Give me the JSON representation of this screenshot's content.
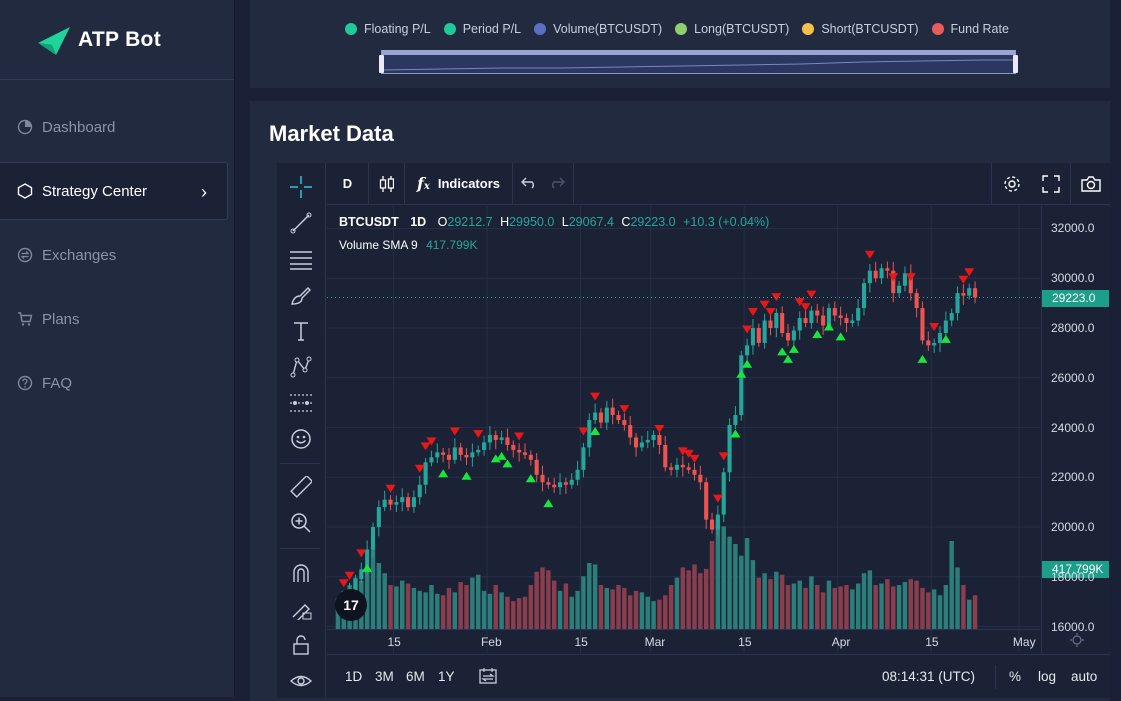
{
  "app": {
    "name": "ATP Bot"
  },
  "sidebar": {
    "items": [
      {
        "label": "Dashboard",
        "icon": "dashboard-icon",
        "active": false
      },
      {
        "label": "Strategy Center",
        "icon": "strategy-icon",
        "active": true
      },
      {
        "label": "Exchanges",
        "icon": "exchange-icon",
        "active": false
      },
      {
        "label": "Plans",
        "icon": "cart-icon",
        "active": false
      },
      {
        "label": "FAQ",
        "icon": "question-icon",
        "active": false
      }
    ]
  },
  "legend": {
    "items": [
      {
        "label": "Floating P/L",
        "color": "#1fc99a"
      },
      {
        "label": "Period P/L",
        "color": "#1fc99a"
      },
      {
        "label": "Volume(BTCUSDT)",
        "color": "#5a6fc2"
      },
      {
        "label": "Long(BTCUSDT)",
        "color": "#8ecf6f"
      },
      {
        "label": "Short(BTCUSDT)",
        "color": "#f5c04a"
      },
      {
        "label": "Fund Rate",
        "color": "#ea5c5c"
      }
    ]
  },
  "market": {
    "title": "Market Data",
    "toolbar": {
      "interval": "D",
      "indicators": "Indicators"
    },
    "symbol": "BTCUSDT",
    "timeframe": "1D",
    "ohlc": {
      "o": "29212.7",
      "h": "29950.0",
      "l": "29067.4",
      "c": "29223.0",
      "change": "+10.3 (+0.04%)"
    },
    "volume_sma": {
      "label": "Volume SMA 9",
      "value": "417.799K"
    },
    "price_tag": "29223.0",
    "volume_tag": "417.799K",
    "range_buttons": [
      "1D",
      "3M",
      "6M",
      "1Y"
    ],
    "clock": "08:14:31 (UTC)",
    "percent": "%",
    "log": "log",
    "auto": "auto"
  },
  "chart_data": {
    "type": "candlestick",
    "symbol": "BTCUSDT",
    "y_ticks": [
      "32000.0",
      "30000.0",
      "28000.0",
      "26000.0",
      "24000.0",
      "22000.0",
      "20000.0",
      "18000.0",
      "16000.0"
    ],
    "ylim": [
      15500,
      32500
    ],
    "x_ticks": [
      "15",
      "Feb",
      "15",
      "Mar",
      "15",
      "Apr",
      "15",
      "May"
    ],
    "closes": [
      16800,
      17100,
      17400,
      17900,
      18300,
      19100,
      20000,
      20800,
      21100,
      20900,
      21000,
      21200,
      20800,
      21200,
      21700,
      22600,
      22800,
      23000,
      22900,
      22700,
      23200,
      22900,
      22800,
      23000,
      23100,
      23400,
      23700,
      23500,
      23600,
      23300,
      23100,
      23000,
      22900,
      22700,
      22100,
      21800,
      21700,
      21600,
      21800,
      21700,
      21900,
      22300,
      23200,
      24300,
      24600,
      24200,
      24800,
      24500,
      24300,
      24100,
      23600,
      23200,
      23400,
      23500,
      23700,
      23300,
      22400,
      22300,
      22500,
      22400,
      22300,
      22100,
      21800,
      20300,
      19900,
      20500,
      22200,
      24100,
      24500,
      26900,
      27300,
      28000,
      27400,
      28300,
      28000,
      28600,
      27800,
      27500,
      27900,
      28400,
      28200,
      28700,
      28500,
      28100,
      28800,
      28500,
      28400,
      28200,
      28300,
      28800,
      29800,
      30300,
      30000,
      30400,
      30300,
      29400,
      29700,
      30200,
      29400,
      28800,
      27500,
      27300,
      27400,
      27800,
      28300,
      28600,
      29400,
      29300,
      29600,
      29223
    ],
    "volumes": [
      210,
      260,
      300,
      350,
      330,
      420,
      560,
      450,
      380,
      300,
      290,
      330,
      310,
      280,
      260,
      250,
      300,
      240,
      230,
      280,
      250,
      320,
      300,
      350,
      370,
      260,
      240,
      300,
      250,
      220,
      190,
      210,
      220,
      300,
      390,
      420,
      400,
      330,
      260,
      310,
      220,
      260,
      360,
      450,
      440,
      300,
      280,
      270,
      300,
      280,
      230,
      260,
      250,
      220,
      190,
      200,
      230,
      300,
      350,
      420,
      400,
      440,
      380,
      410,
      600,
      750,
      700,
      630,
      580,
      500,
      620,
      470,
      350,
      380,
      340,
      390,
      370,
      300,
      310,
      330,
      280,
      360,
      300,
      250,
      330,
      280,
      290,
      300,
      270,
      310,
      380,
      400,
      300,
      310,
      340,
      290,
      300,
      320,
      340,
      330,
      280,
      250,
      270,
      230,
      300,
      600,
      420,
      300,
      200,
      230
    ],
    "long_signal_index": [
      5,
      18,
      22,
      27,
      28,
      29,
      33,
      36,
      44,
      68,
      69,
      70,
      76,
      77,
      78,
      82,
      84,
      86,
      100,
      104
    ],
    "short_signal_index": [
      1,
      2,
      4,
      9,
      14,
      15,
      16,
      20,
      24,
      31,
      42,
      44,
      49,
      55,
      59,
      60,
      61,
      65,
      66,
      70,
      71,
      73,
      74,
      75,
      79,
      80,
      81,
      91,
      95,
      98,
      102,
      107,
      108
    ],
    "last_price": 29223.0
  }
}
